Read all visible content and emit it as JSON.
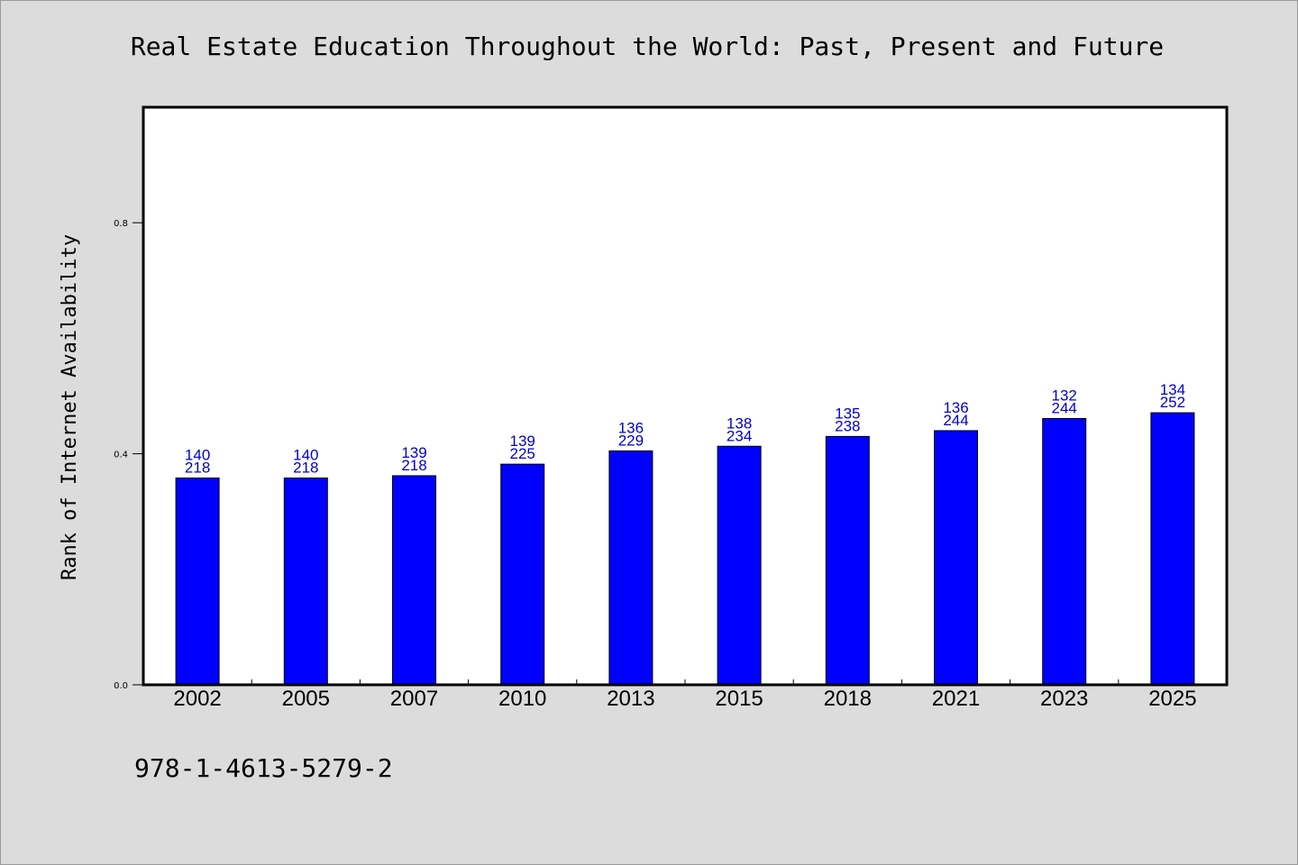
{
  "chart_data": {
    "type": "bar",
    "title": "Real Estate Education Throughout the World: Past, Present and Future",
    "xlabel": "",
    "ylabel": "Rank of Internet Availability",
    "categories": [
      "2002",
      "2005",
      "2007",
      "2010",
      "2013",
      "2015",
      "2018",
      "2021",
      "2023",
      "2025"
    ],
    "values": [
      0.358,
      0.358,
      0.362,
      0.382,
      0.405,
      0.413,
      0.43,
      0.44,
      0.461,
      0.471
    ],
    "label_top": [
      "140",
      "140",
      "139",
      "139",
      "136",
      "138",
      "135",
      "136",
      "132",
      "134"
    ],
    "label_bottom": [
      "218",
      "218",
      "218",
      "225",
      "229",
      "234",
      "238",
      "244",
      "244",
      "252"
    ],
    "ylim": [
      0,
      1.0
    ],
    "yticks": [
      0.0,
      0.4,
      0.8
    ],
    "ytick_labels": [
      "0.0",
      "0.4",
      "0.8"
    ],
    "grid": false,
    "legend": "none",
    "bar_color": "#0000ff",
    "label_color": "#0000cc"
  },
  "footer": {
    "isbn": "978-1-4613-5279-2"
  }
}
